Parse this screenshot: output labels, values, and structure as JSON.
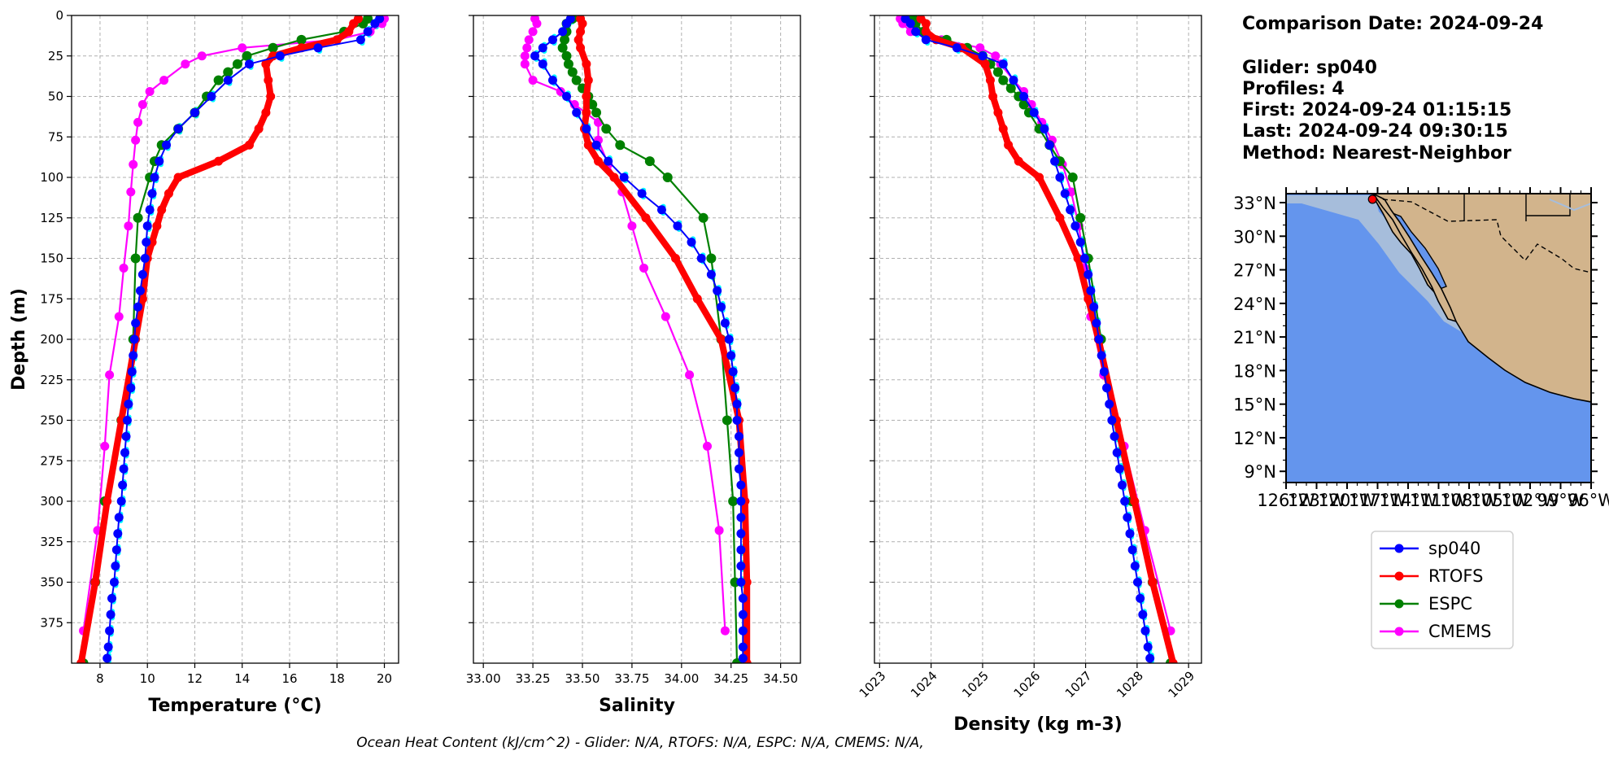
{
  "colors": {
    "sp040": "#0000ff",
    "sp040_cyan": "#00ffff",
    "RTOFS": "#ff0000",
    "ESPC": "#008000",
    "CMEMS": "#ff00ff",
    "ocean": "#6495ed",
    "land": "#d2b48c",
    "shelf": "#a6bddb"
  },
  "info": {
    "line1": "Comparison Date: 2024-09-24",
    "line2": "Glider: sp040",
    "line3": "Profiles: 4",
    "line4": "First: 2024-09-24 01:15:15",
    "line5": "Last: 2024-09-24 09:30:15",
    "line6": "Method: Nearest-Neighbor"
  },
  "map": {
    "lat_ticks": [
      "33°N",
      "30°N",
      "27°N",
      "24°N",
      "21°N",
      "18°N",
      "15°N",
      "12°N",
      "9°N"
    ],
    "lon_ticks": [
      "126°W",
      "123°W",
      "120°W",
      "117°W",
      "114°W",
      "111°W",
      "108°W",
      "105°W",
      "102°W",
      "99°W",
      "96°W"
    ],
    "lat_range": [
      8.0,
      33.8
    ],
    "lon_range": [
      -126.0,
      -96.0
    ],
    "glider_position": {
      "lat": 33.3,
      "lon": -117.5
    }
  },
  "legend": {
    "placement": "below map",
    "entries": [
      "sp040",
      "RTOFS",
      "ESPC",
      "CMEMS"
    ]
  },
  "footer": {
    "text": "Ocean Heat Content (kJ/cm^2) - Glider: N/A,  RTOFS: N/A,  ESPC: N/A,  CMEMS: N/A,"
  },
  "chart_data": [
    {
      "type": "line",
      "xlabel": "Temperature (°C)",
      "ylabel": "Depth (m)",
      "xlim": [
        6.8,
        20.6
      ],
      "ylim": [
        400,
        0
      ],
      "xticks": [
        8,
        10,
        12,
        14,
        16,
        18,
        20
      ],
      "yticks": [
        0,
        25,
        50,
        75,
        100,
        125,
        150,
        175,
        200,
        225,
        250,
        275,
        300,
        325,
        350,
        375
      ],
      "grid": true,
      "series": [
        {
          "name": "sp040",
          "depth": [
            2,
            5,
            10,
            15,
            20,
            25,
            30,
            40,
            50,
            60,
            70,
            80,
            90,
            100,
            110,
            120,
            130,
            140,
            150,
            160,
            170,
            180,
            190,
            200,
            210,
            220,
            230,
            240,
            250,
            260,
            270,
            280,
            290,
            300,
            310,
            320,
            330,
            340,
            350,
            360,
            370,
            380,
            390,
            397
          ],
          "values": [
            19.8,
            19.6,
            19.3,
            19.0,
            17.2,
            15.6,
            14.3,
            13.4,
            12.7,
            12.0,
            11.3,
            10.8,
            10.5,
            10.3,
            10.2,
            10.1,
            10.0,
            9.95,
            9.9,
            9.8,
            9.7,
            9.6,
            9.5,
            9.45,
            9.4,
            9.35,
            9.3,
            9.2,
            9.15,
            9.1,
            9.05,
            9.0,
            8.95,
            8.9,
            8.8,
            8.75,
            8.7,
            8.65,
            8.6,
            8.5,
            8.45,
            8.4,
            8.35,
            8.3
          ]
        },
        {
          "name": "RTOFS",
          "depth": [
            2,
            5,
            10,
            15,
            20,
            25,
            30,
            40,
            50,
            60,
            70,
            80,
            90,
            100,
            110,
            120,
            130,
            140,
            150,
            175,
            200,
            250,
            300,
            350,
            400
          ],
          "values": [
            18.9,
            18.7,
            18.5,
            18.0,
            16.5,
            15.3,
            15.0,
            15.1,
            15.2,
            15.0,
            14.7,
            14.3,
            13.0,
            11.3,
            10.9,
            10.6,
            10.4,
            10.2,
            10.0,
            9.8,
            9.5,
            8.9,
            8.3,
            7.8,
            7.2
          ]
        },
        {
          "name": "ESPC",
          "depth": [
            2,
            5,
            10,
            15,
            20,
            25,
            30,
            35,
            40,
            50,
            60,
            70,
            80,
            90,
            100,
            125,
            150,
            200,
            250,
            300,
            350,
            400
          ],
          "values": [
            19.3,
            19.1,
            18.3,
            16.5,
            15.3,
            14.2,
            13.8,
            13.4,
            13.0,
            12.5,
            12.0,
            11.3,
            10.6,
            10.3,
            10.1,
            9.6,
            9.5,
            9.4,
            8.9,
            8.2,
            7.8,
            7.3
          ]
        },
        {
          "name": "CMEMS",
          "depth": [
            2,
            5,
            10,
            15,
            20,
            25,
            30,
            40,
            47,
            55,
            66,
            77,
            92,
            109,
            130,
            156,
            186,
            222,
            266,
            318,
            380
          ],
          "values": [
            20.0,
            19.9,
            19.4,
            18.0,
            14.0,
            12.3,
            11.6,
            10.7,
            10.1,
            9.8,
            9.6,
            9.5,
            9.4,
            9.3,
            9.2,
            9.0,
            8.8,
            8.4,
            8.2,
            7.9,
            7.3
          ]
        }
      ]
    },
    {
      "type": "line",
      "xlabel": "Salinity",
      "xlim": [
        32.95,
        34.6
      ],
      "ylim": [
        400,
        0
      ],
      "xticks": [
        "33.00",
        "33.25",
        "33.50",
        "33.75",
        "34.00",
        "34.25",
        "34.50"
      ],
      "grid": true,
      "series": [
        {
          "name": "sp040",
          "depth": [
            2,
            5,
            10,
            15,
            20,
            25,
            30,
            40,
            50,
            60,
            70,
            80,
            90,
            100,
            110,
            120,
            130,
            140,
            150,
            160,
            170,
            180,
            190,
            200,
            210,
            220,
            230,
            240,
            250,
            260,
            270,
            280,
            290,
            300,
            310,
            320,
            330,
            340,
            350,
            360,
            370,
            380,
            390,
            397
          ],
          "values": [
            33.44,
            33.42,
            33.4,
            33.35,
            33.3,
            33.26,
            33.3,
            33.35,
            33.42,
            33.47,
            33.52,
            33.57,
            33.63,
            33.71,
            33.8,
            33.9,
            33.98,
            34.05,
            34.1,
            34.15,
            34.18,
            34.2,
            34.22,
            34.24,
            34.25,
            34.26,
            34.27,
            34.28,
            34.28,
            34.29,
            34.29,
            34.29,
            34.3,
            34.3,
            34.3,
            34.3,
            34.3,
            34.3,
            34.3,
            34.31,
            34.31,
            34.31,
            34.31,
            34.31
          ]
        },
        {
          "name": "RTOFS",
          "depth": [
            2,
            5,
            10,
            15,
            20,
            30,
            40,
            50,
            60,
            70,
            80,
            90,
            100,
            125,
            150,
            175,
            200,
            250,
            300,
            350,
            400
          ],
          "values": [
            33.49,
            33.5,
            33.49,
            33.48,
            33.49,
            33.52,
            33.53,
            33.52,
            33.52,
            33.51,
            33.53,
            33.58,
            33.66,
            33.82,
            33.97,
            34.08,
            34.2,
            34.29,
            34.32,
            34.33,
            34.33
          ]
        },
        {
          "name": "ESPC",
          "depth": [
            2,
            5,
            10,
            15,
            20,
            25,
            30,
            35,
            40,
            45,
            50,
            55,
            60,
            70,
            80,
            90,
            100,
            125,
            150,
            200,
            250,
            300,
            350,
            400
          ],
          "values": [
            33.45,
            33.42,
            33.42,
            33.41,
            33.4,
            33.42,
            33.43,
            33.45,
            33.47,
            33.5,
            33.53,
            33.55,
            33.57,
            33.62,
            33.69,
            33.84,
            33.93,
            34.11,
            34.15,
            34.2,
            34.23,
            34.26,
            34.27,
            34.28
          ]
        },
        {
          "name": "CMEMS",
          "depth": [
            2,
            5,
            10,
            15,
            20,
            25,
            30,
            40,
            47,
            55,
            66,
            77,
            92,
            109,
            130,
            156,
            186,
            222,
            266,
            318,
            380
          ],
          "values": [
            33.26,
            33.27,
            33.25,
            33.23,
            33.22,
            33.21,
            33.21,
            33.25,
            33.39,
            33.46,
            33.58,
            33.58,
            33.63,
            33.7,
            33.75,
            33.81,
            33.92,
            34.04,
            34.13,
            34.19,
            34.22
          ]
        }
      ]
    },
    {
      "type": "line",
      "xlabel": "Density (kg m-3)",
      "xlim": [
        1022.9,
        1029.25
      ],
      "ylim": [
        400,
        0
      ],
      "xticks": [
        1023,
        1024,
        1025,
        1026,
        1027,
        1028,
        1029
      ],
      "grid": true,
      "series": [
        {
          "name": "sp040",
          "depth": [
            2,
            5,
            10,
            15,
            20,
            25,
            30,
            40,
            50,
            60,
            70,
            80,
            90,
            100,
            110,
            120,
            130,
            140,
            150,
            160,
            170,
            180,
            190,
            200,
            210,
            220,
            230,
            240,
            250,
            260,
            270,
            280,
            290,
            300,
            310,
            320,
            330,
            340,
            350,
            360,
            370,
            380,
            390,
            397
          ],
          "values": [
            1023.5,
            1023.6,
            1023.7,
            1023.9,
            1024.5,
            1025.0,
            1025.4,
            1025.6,
            1025.8,
            1026.0,
            1026.2,
            1026.3,
            1026.4,
            1026.5,
            1026.6,
            1026.7,
            1026.8,
            1026.9,
            1026.98,
            1027.05,
            1027.1,
            1027.16,
            1027.21,
            1027.26,
            1027.31,
            1027.36,
            1027.41,
            1027.46,
            1027.51,
            1027.56,
            1027.61,
            1027.66,
            1027.71,
            1027.76,
            1027.81,
            1027.86,
            1027.91,
            1027.96,
            1028.01,
            1028.06,
            1028.11,
            1028.16,
            1028.21,
            1028.25
          ]
        },
        {
          "name": "RTOFS",
          "depth": [
            2,
            5,
            10,
            15,
            20,
            30,
            40,
            50,
            60,
            70,
            80,
            90,
            100,
            125,
            150,
            175,
            200,
            250,
            300,
            350,
            400
          ],
          "values": [
            1023.8,
            1023.9,
            1023.9,
            1024.1,
            1024.6,
            1025.05,
            1025.15,
            1025.2,
            1025.3,
            1025.4,
            1025.5,
            1025.7,
            1026.1,
            1026.5,
            1026.85,
            1027.05,
            1027.25,
            1027.6,
            1027.95,
            1028.3,
            1028.7
          ]
        },
        {
          "name": "ESPC",
          "depth": [
            2,
            5,
            10,
            15,
            20,
            25,
            30,
            35,
            40,
            45,
            50,
            55,
            60,
            70,
            80,
            90,
            100,
            125,
            150,
            200,
            250,
            300,
            350,
            400
          ],
          "values": [
            1023.65,
            1023.7,
            1023.85,
            1024.3,
            1024.7,
            1025.0,
            1025.15,
            1025.3,
            1025.4,
            1025.55,
            1025.7,
            1025.8,
            1025.9,
            1026.1,
            1026.3,
            1026.5,
            1026.75,
            1026.9,
            1027.05,
            1027.3,
            1027.55,
            1027.9,
            1028.3,
            1028.65
          ]
        },
        {
          "name": "CMEMS",
          "depth": [
            2,
            5,
            10,
            15,
            20,
            25,
            30,
            40,
            47,
            55,
            66,
            77,
            92,
            109,
            130,
            156,
            186,
            222,
            266,
            318,
            380
          ],
          "values": [
            1023.4,
            1023.45,
            1023.6,
            1024.2,
            1024.95,
            1025.25,
            1025.35,
            1025.6,
            1025.8,
            1025.95,
            1026.15,
            1026.35,
            1026.55,
            1026.72,
            1026.87,
            1026.98,
            1027.1,
            1027.35,
            1027.75,
            1028.15,
            1028.65
          ]
        }
      ]
    }
  ]
}
